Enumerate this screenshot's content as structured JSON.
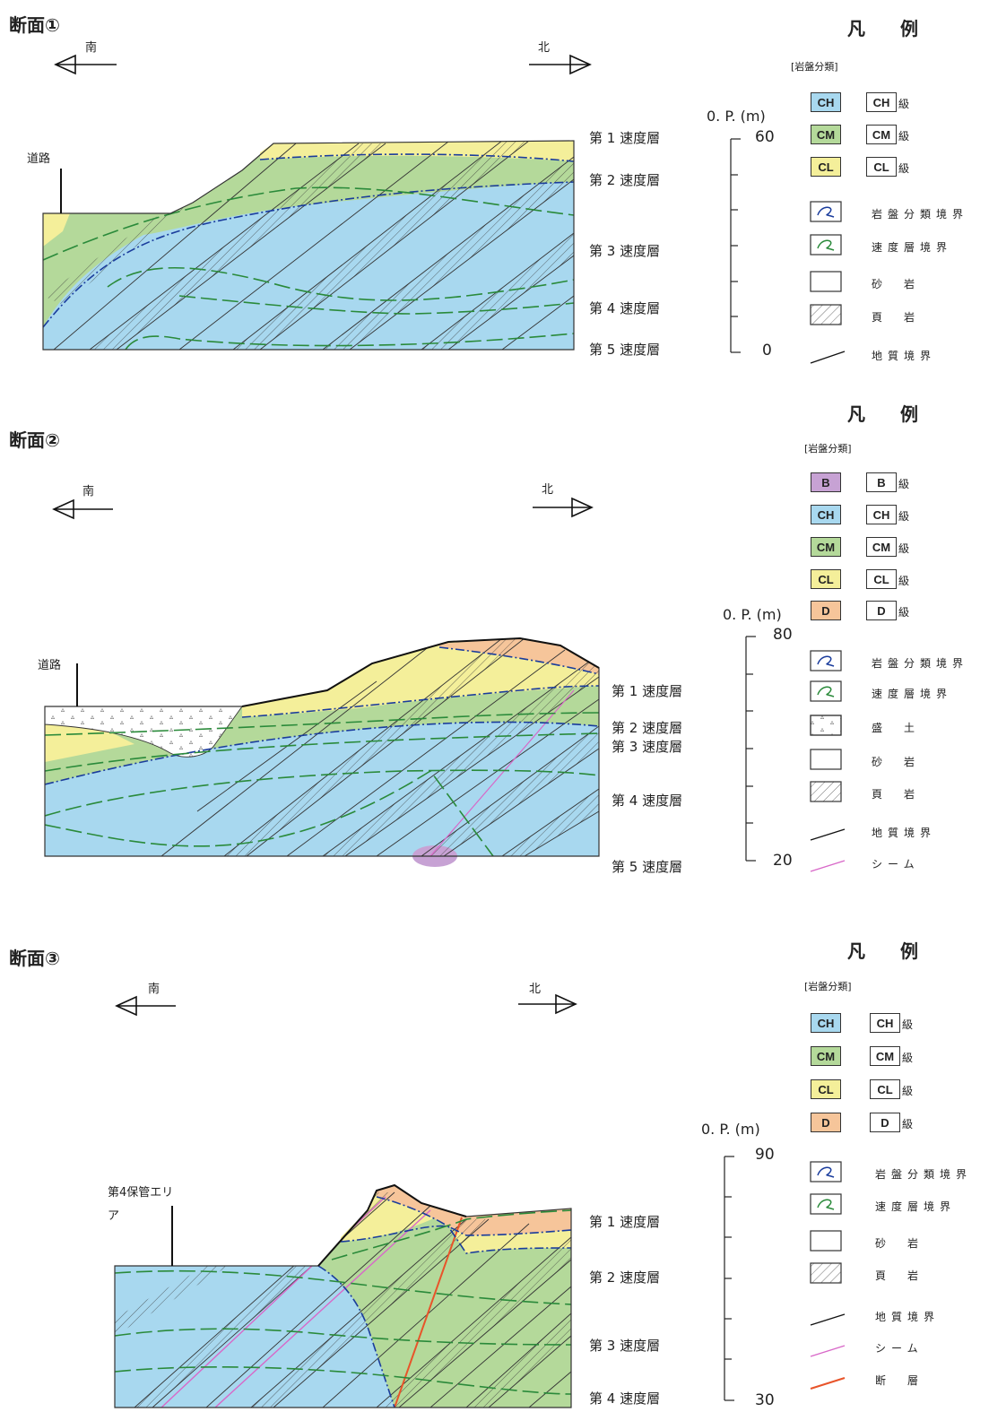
{
  "colors": {
    "ch": "#a8d8ef",
    "cm": "#b4d99a",
    "cl": "#f4ef9a",
    "d": "#f6c59a",
    "b": "#c7a2d4",
    "blue": "#1a3c9c",
    "green": "#2a8a3a",
    "pink": "#d868c8",
    "red": "#e8542a"
  },
  "sections": [
    {
      "title": "断面①",
      "south": "南",
      "north": "北",
      "marker": "道路",
      "layers": [
        "第 1 速度層",
        "第 2 速度層",
        "第 3 速度層",
        "第 4 速度層",
        "第 5 速度層"
      ],
      "op_label": "0. P. (m)",
      "scale_top": "60",
      "scale_bottom": "0",
      "legend": {
        "header": "凡 例",
        "category": "[岩盤分類]",
        "rock": [
          {
            "code": "CH",
            "label": "級",
            "color": "ch"
          },
          {
            "code": "CM",
            "label": "級",
            "color": "cm"
          },
          {
            "code": "CL",
            "label": "級",
            "color": "cl"
          }
        ],
        "symbols": [
          "岩盤分類境界",
          "速度層境界",
          "砂　岩",
          "頁　岩",
          "地質境界"
        ]
      }
    },
    {
      "title": "断面②",
      "south": "南",
      "north": "北",
      "marker": "道路",
      "layers": [
        "第 1 速度層",
        "第 2 速度層",
        "第 3 速度層",
        "第 4 速度層",
        "第 5 速度層"
      ],
      "op_label": "0. P. (m)",
      "scale_top": "80",
      "scale_bottom": "20",
      "legend": {
        "header": "凡 例",
        "category": "[岩盤分類]",
        "rock": [
          {
            "code": "B",
            "label": "級",
            "color": "b"
          },
          {
            "code": "CH",
            "label": "級",
            "color": "ch"
          },
          {
            "code": "CM",
            "label": "級",
            "color": "cm"
          },
          {
            "code": "CL",
            "label": "級",
            "color": "cl"
          },
          {
            "code": "D",
            "label": "級",
            "color": "d"
          }
        ],
        "symbols": [
          "岩盤分類境界",
          "速度層境界",
          "盛　土",
          "砂　岩",
          "頁　岩",
          "地質境界",
          "シーム"
        ]
      }
    },
    {
      "title": "断面③",
      "south": "南",
      "north": "北",
      "marker": "第4保管エリア",
      "layers": [
        "第 1 速度層",
        "第 2 速度層",
        "第 3 速度層",
        "第 4 速度層"
      ],
      "op_label": "0. P. (m)",
      "scale_top": "90",
      "scale_bottom": "30",
      "legend": {
        "header": "凡 例",
        "category": "[岩盤分類]",
        "rock": [
          {
            "code": "CH",
            "label": "級",
            "color": "ch"
          },
          {
            "code": "CM",
            "label": "級",
            "color": "cm"
          },
          {
            "code": "CL",
            "label": "級",
            "color": "cl"
          },
          {
            "code": "D",
            "label": "級",
            "color": "d"
          }
        ],
        "symbols": [
          "岩盤分類境界",
          "速度層境界",
          "砂　岩",
          "頁　岩",
          "地質境界",
          "シーム",
          "断　層"
        ]
      }
    }
  ]
}
